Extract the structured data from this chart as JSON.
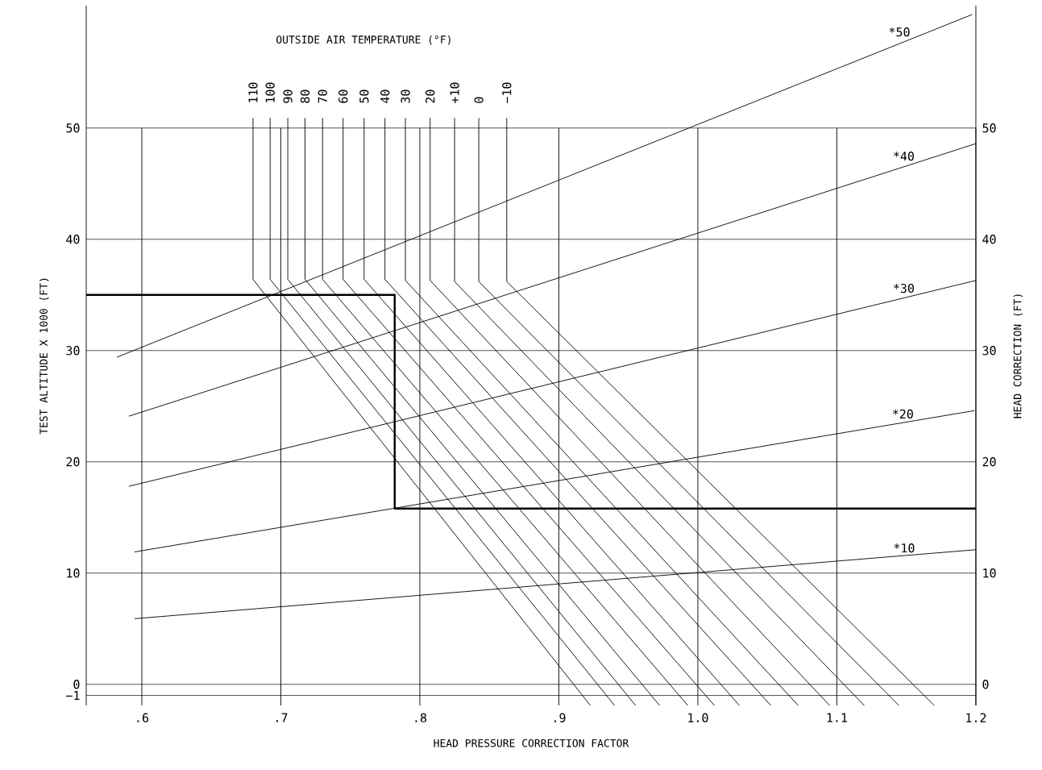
{
  "chart_data": {
    "type": "line",
    "xlabel": "HEAD PRESSURE CORRECTION FACTOR",
    "ylabel": "TEST ALTITUDE X 1000 (FT)",
    "y2label": "HEAD CORRECTION (FT)",
    "annotations": [
      "OUTSIDE AIR TEMPERATURE (°F)"
    ],
    "xlim": [
      0.56,
      1.2
    ],
    "xticks": [
      {
        "value": 0.6,
        "label": ".6"
      },
      {
        "value": 0.7,
        "label": ".7"
      },
      {
        "value": 0.8,
        "label": ".8"
      },
      {
        "value": 0.9,
        "label": ".9"
      },
      {
        "value": 1.0,
        "label": "1.0"
      },
      1.1,
      1.2
    ],
    "ylim": [
      -1.9,
      61
    ],
    "yticks": [
      {
        "value": -1,
        "label": "−1"
      },
      0,
      10,
      20,
      30,
      40,
      50
    ],
    "y2lim": [
      -1.9,
      61
    ],
    "y2ticks": [
      0,
      10,
      20,
      30,
      40,
      50
    ],
    "grid": true,
    "series": [
      {
        "name": "110",
        "color": "#000000",
        "x": [
          0.68,
          0.68,
          0.9227
        ],
        "values": [
          50.9,
          36.4,
          -1.9
        ]
      },
      {
        "name": "100",
        "color": "#000000",
        "x": [
          0.6923,
          0.6923,
          0.9401
        ],
        "values": [
          50.9,
          36.4,
          -1.9
        ]
      },
      {
        "name": "90",
        "color": "#000000",
        "x": [
          0.705,
          0.705,
          0.9552
        ],
        "values": [
          50.9,
          36.4,
          -1.9
        ]
      },
      {
        "name": "80",
        "color": "#000000",
        "x": [
          0.7174,
          0.7174,
          0.9725
        ],
        "values": [
          50.9,
          36.4,
          -1.9
        ]
      },
      {
        "name": "70",
        "color": "#000000",
        "x": [
          0.73,
          0.73,
          0.9928
        ],
        "values": [
          50.9,
          36.4,
          -1.9
        ]
      },
      {
        "name": "60",
        "color": "#000000",
        "x": [
          0.7448,
          0.7448,
          1.0119
        ],
        "values": [
          50.9,
          36.4,
          -1.9
        ]
      },
      {
        "name": "50",
        "color": "#000000",
        "x": [
          0.7599,
          0.7599,
          1.0299
        ],
        "values": [
          50.9,
          36.4,
          -1.9
        ]
      },
      {
        "name": "40",
        "color": "#000000",
        "x": [
          0.7749,
          0.7749,
          1.0525
        ],
        "values": [
          50.9,
          36.4,
          -1.9
        ]
      },
      {
        "name": "30",
        "color": "#000000",
        "x": [
          0.7896,
          0.7896,
          1.0722
        ],
        "values": [
          50.9,
          36.3,
          -1.9
        ]
      },
      {
        "name": "20",
        "color": "#000000",
        "x": [
          0.8074,
          0.8074,
          1.0948
        ],
        "values": [
          50.9,
          36.3,
          -1.9
        ]
      },
      {
        "name": "+10",
        "color": "#000000",
        "x": [
          0.825,
          0.825,
          1.1197
        ],
        "values": [
          50.9,
          36.2,
          -1.9
        ]
      },
      {
        "name": "0",
        "color": "#000000",
        "x": [
          0.8424,
          0.8424,
          1.1446
        ],
        "values": [
          50.9,
          36.2,
          -1.9
        ]
      },
      {
        "name": "−10",
        "color": "#000000",
        "x": [
          0.8625,
          0.8625,
          1.1701
        ],
        "values": [
          50.9,
          36.2,
          -1.9
        ]
      },
      {
        "name": "*50",
        "color": "#000000",
        "x": [
          0.582,
          1.1973
        ],
        "values": [
          29.4,
          60.2
        ]
      },
      {
        "name": "*40",
        "color": "#000000",
        "x": [
          0.5907,
          1.2
        ],
        "values": [
          24.1,
          48.6
        ]
      },
      {
        "name": "*30",
        "color": "#000000",
        "x": [
          0.5907,
          1.2
        ],
        "values": [
          17.8,
          36.3
        ]
      },
      {
        "name": "*20",
        "color": "#000000",
        "x": [
          0.5948,
          1.199
        ],
        "values": [
          11.9,
          24.6
        ]
      },
      {
        "name": "*10",
        "color": "#000000",
        "x": [
          0.5948,
          1.2
        ],
        "values": [
          5.9,
          12.1
        ]
      },
      {
        "type": "step",
        "color": "#000000",
        "x": [
          0.56,
          0.7819,
          1.2
        ],
        "values": [
          35,
          15.8,
          15.8
        ]
      }
    ]
  }
}
